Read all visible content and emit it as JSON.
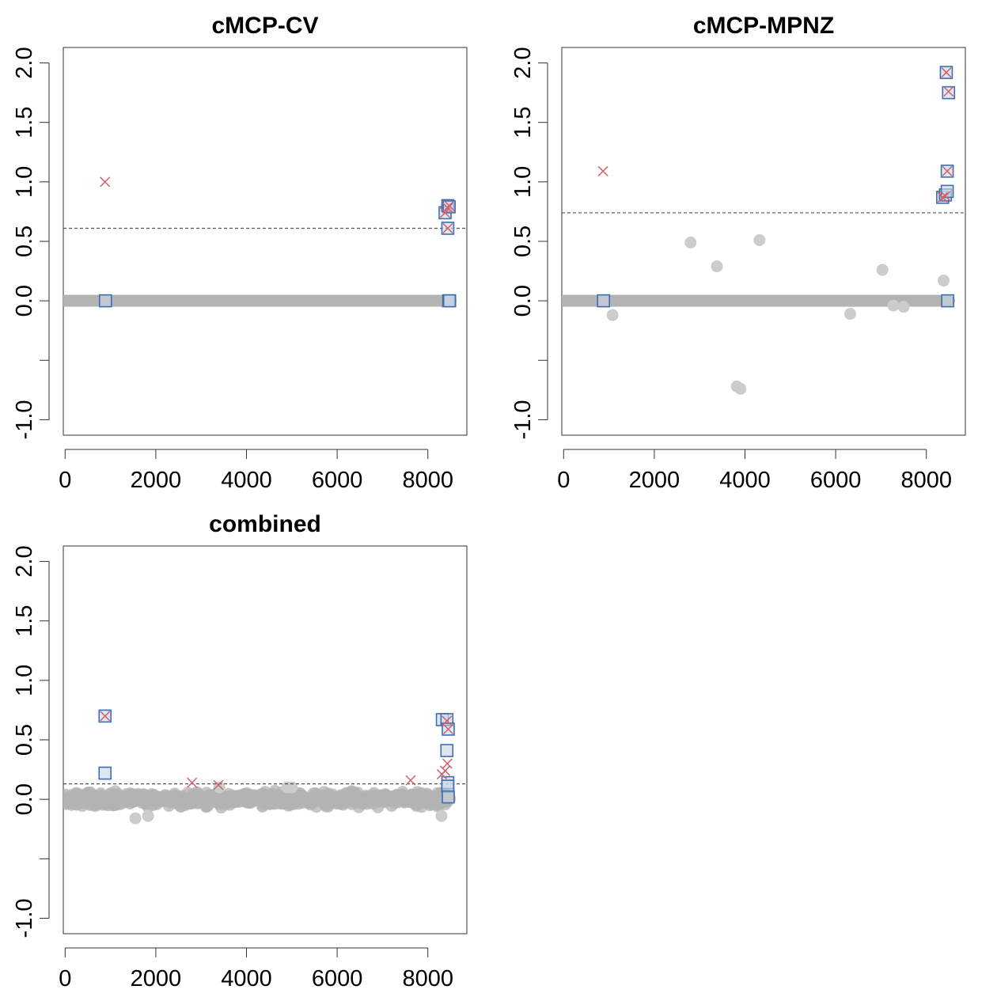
{
  "colors": {
    "point_gray": "#b3b3b3",
    "point_gray_light": "#cccccc",
    "marker_box": "#3d6fae",
    "marker_box_fill": "#c9d5e6",
    "marker_x": "#d4606a",
    "threshold": "#555555",
    "axis": "#333333"
  },
  "chart_data": [
    {
      "type": "scatter",
      "title": "cMCP-CV",
      "xlabel": "",
      "ylabel": "",
      "xlim": [
        0,
        8500
      ],
      "ylim": [
        -1.0,
        2.0
      ],
      "x_ticks": [
        "0",
        "2000",
        "4000",
        "6000",
        "8000"
      ],
      "y_ticks": [
        "-1.0",
        "",
        "0.0",
        "0.5",
        "1.0",
        "1.5",
        "2.0"
      ],
      "threshold": 0.61,
      "baseline": {
        "x_from": 0,
        "x_to": 8500,
        "y": 0.0
      },
      "scatter_points": [],
      "boxes": [
        [
          890,
          0.0
        ],
        [
          8380,
          0.74
        ],
        [
          8440,
          0.8
        ],
        [
          8470,
          0.79
        ],
        [
          8440,
          0.61
        ],
        [
          8460,
          0.0
        ],
        [
          8480,
          0.0
        ]
      ],
      "crosses": [
        [
          880,
          1.0
        ],
        [
          8380,
          0.74
        ],
        [
          8440,
          0.78
        ],
        [
          8470,
          0.8
        ],
        [
          8440,
          0.61
        ]
      ]
    },
    {
      "type": "scatter",
      "title": "cMCP-MPNZ",
      "xlabel": "",
      "ylabel": "",
      "xlim": [
        0,
        8500
      ],
      "ylim": [
        -1.0,
        2.0
      ],
      "x_ticks": [
        "0",
        "2000",
        "4000",
        "6000",
        "8000"
      ],
      "y_ticks": [
        "-1.0",
        "",
        "0.0",
        "0.5",
        "1.0",
        "1.5",
        "2.0"
      ],
      "threshold": 0.74,
      "baseline": {
        "x_from": 0,
        "x_to": 8500,
        "y": 0.0
      },
      "scatter_points": [
        [
          1080,
          -0.12
        ],
        [
          2800,
          0.49
        ],
        [
          3380,
          0.29
        ],
        [
          3820,
          -0.72
        ],
        [
          3900,
          -0.74
        ],
        [
          4320,
          0.51
        ],
        [
          6320,
          -0.11
        ],
        [
          7030,
          0.26
        ],
        [
          7270,
          -0.04
        ],
        [
          7500,
          -0.05
        ],
        [
          8380,
          0.17
        ]
      ],
      "boxes": [
        [
          880,
          0.0
        ],
        [
          8360,
          0.87
        ],
        [
          8420,
          0.89
        ],
        [
          8440,
          1.92
        ],
        [
          8460,
          1.09
        ],
        [
          8460,
          0.92
        ],
        [
          8490,
          1.75
        ],
        [
          8470,
          0.0
        ]
      ],
      "crosses": [
        [
          870,
          1.09
        ],
        [
          8360,
          0.87
        ],
        [
          8420,
          0.88
        ],
        [
          8440,
          1.92
        ],
        [
          8460,
          1.09
        ],
        [
          8490,
          1.76
        ]
      ]
    },
    {
      "type": "scatter",
      "title": "combined",
      "xlabel": "",
      "ylabel": "",
      "xlim": [
        0,
        8500
      ],
      "ylim": [
        -1.0,
        2.0
      ],
      "x_ticks": [
        "0",
        "2000",
        "4000",
        "6000",
        "8000"
      ],
      "y_ticks": [
        "-1.0",
        "",
        "0.0",
        "0.5",
        "1.0",
        "1.5",
        "2.0"
      ],
      "threshold": 0.13,
      "noise_band": {
        "x_from": 0,
        "x_to": 8500,
        "center": 0.0,
        "half_width": 0.06
      },
      "scatter_points": [
        [
          1550,
          -0.16
        ],
        [
          1830,
          -0.14
        ],
        [
          8300,
          -0.14
        ],
        [
          4900,
          0.1
        ],
        [
          5000,
          0.1
        ],
        [
          3400,
          0.1
        ]
      ],
      "boxes": [
        [
          880,
          0.7
        ],
        [
          880,
          0.22
        ],
        [
          8320,
          0.67
        ],
        [
          8420,
          0.67
        ],
        [
          8450,
          0.59
        ],
        [
          8420,
          0.41
        ],
        [
          8440,
          0.14
        ],
        [
          8440,
          0.11
        ],
        [
          8450,
          0.02
        ]
      ],
      "crosses": [
        [
          880,
          0.7
        ],
        [
          2800,
          0.14
        ],
        [
          3380,
          0.12
        ],
        [
          7620,
          0.16
        ],
        [
          8310,
          0.21
        ],
        [
          8380,
          0.24
        ],
        [
          8420,
          0.66
        ],
        [
          8430,
          0.3
        ],
        [
          8450,
          0.59
        ]
      ]
    }
  ]
}
